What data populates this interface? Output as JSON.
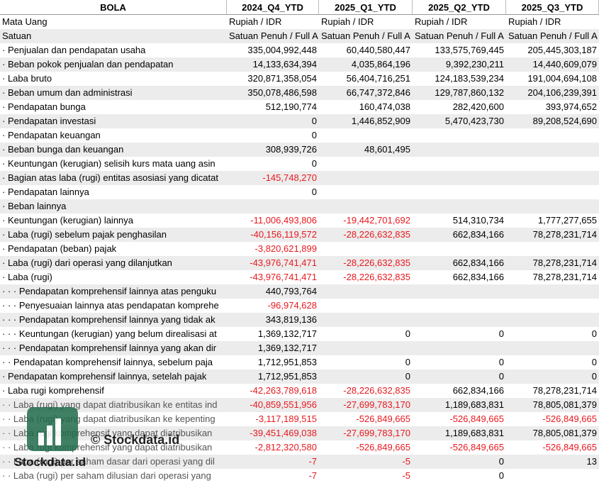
{
  "header": [
    "BOLA",
    "2024_Q4_YTD",
    "2025_Q1_YTD",
    "2025_Q2_YTD",
    "2025_Q3_YTD"
  ],
  "meta_rows": [
    {
      "label": "Mata Uang",
      "values": [
        "Rupiah / IDR",
        "Rupiah / IDR",
        "Rupiah / IDR",
        "Rupiah / IDR"
      ]
    },
    {
      "label": "Satuan",
      "values": [
        "Satuan Penuh / Full A",
        "Satuan Penuh / Full A",
        "Satuan Penuh / Full A",
        "Satuan Penuh / Full A"
      ]
    }
  ],
  "rows": [
    {
      "label": "· Penjualan dan pendapatan usaha",
      "values": [
        "335,004,992,448",
        "60,440,580,447",
        "133,575,769,445",
        "205,445,303,187"
      ]
    },
    {
      "label": "· Beban pokok penjualan dan pendapatan",
      "values": [
        "14,133,634,394",
        "4,035,864,196",
        "9,392,230,211",
        "14,440,609,079"
      ]
    },
    {
      "label": "· Laba bruto",
      "values": [
        "320,871,358,054",
        "56,404,716,251",
        "124,183,539,234",
        "191,004,694,108"
      ]
    },
    {
      "label": "· Beban umum dan administrasi",
      "values": [
        "350,078,486,598",
        "66,747,372,846",
        "129,787,860,132",
        "204,106,239,391"
      ]
    },
    {
      "label": "· Pendapatan bunga",
      "values": [
        "512,190,774",
        "160,474,038",
        "282,420,600",
        "393,974,652"
      ]
    },
    {
      "label": "· Pendapatan investasi",
      "values": [
        "0",
        "1,446,852,909",
        "5,470,423,730",
        "89,208,524,690"
      ]
    },
    {
      "label": "· Pendapatan keuangan",
      "values": [
        "0",
        null,
        null,
        null
      ]
    },
    {
      "label": "· Beban bunga dan keuangan",
      "values": [
        "308,939,726",
        "48,601,495",
        null,
        null
      ]
    },
    {
      "label": "· Keuntungan (kerugian) selisih kurs mata uang asin",
      "values": [
        "0",
        null,
        null,
        null
      ]
    },
    {
      "label": "· Bagian atas laba (rugi) entitas asosiasi yang dicatat",
      "values": [
        "-145,748,270",
        null,
        null,
        null
      ]
    },
    {
      "label": "· Pendapatan lainnya",
      "values": [
        "0",
        null,
        null,
        null
      ]
    },
    {
      "label": "· Beban lainnya",
      "values": [
        null,
        null,
        null,
        null
      ]
    },
    {
      "label": "· Keuntungan (kerugian) lainnya",
      "values": [
        "-11,006,493,806",
        "-19,442,701,692",
        "514,310,734",
        "1,777,277,655"
      ]
    },
    {
      "label": "· Laba (rugi) sebelum pajak penghasilan",
      "values": [
        "-40,156,119,572",
        "-28,226,632,835",
        "662,834,166",
        "78,278,231,714"
      ]
    },
    {
      "label": "· Pendapatan (beban) pajak",
      "values": [
        "-3,820,621,899",
        null,
        null,
        null
      ]
    },
    {
      "label": "· Laba (rugi) dari operasi yang dilanjutkan",
      "values": [
        "-43,976,741,471",
        "-28,226,632,835",
        "662,834,166",
        "78,278,231,714"
      ]
    },
    {
      "label": "· Laba (rugi)",
      "values": [
        "-43,976,741,471",
        "-28,226,632,835",
        "662,834,166",
        "78,278,231,714"
      ]
    },
    {
      "label": "· · · Pendapatan komprehensif lainnya atas penguku",
      "values": [
        "440,793,764",
        null,
        null,
        null
      ]
    },
    {
      "label": "· · · Penyesuaian lainnya atas pendapatan komprehe",
      "values": [
        "-96,974,628",
        null,
        null,
        null
      ]
    },
    {
      "label": "· · · Pendapatan komprehensif lainnya yang tidak ak",
      "values": [
        "343,819,136",
        null,
        null,
        null
      ]
    },
    {
      "label": "· · · Keuntungan (kerugian) yang belum direalisasi at",
      "values": [
        "1,369,132,717",
        "0",
        "0",
        "0"
      ]
    },
    {
      "label": "· · · Pendapatan komprehensif lainnya yang akan dir",
      "values": [
        "1,369,132,717",
        null,
        null,
        null
      ]
    },
    {
      "label": "· · Pendapatan komprehensif lainnya, sebelum paja",
      "values": [
        "1,712,951,853",
        "0",
        "0",
        "0"
      ]
    },
    {
      "label": "· Pendapatan komprehensif lainnya, setelah pajak",
      "values": [
        "1,712,951,853",
        "0",
        "0",
        "0"
      ]
    },
    {
      "label": "· Laba rugi komprehensif",
      "values": [
        "-42,263,789,618",
        "-28,226,632,835",
        "662,834,166",
        "78,278,231,714"
      ]
    },
    {
      "label": "· · Laba (rugi) yang dapat diatribusikan ke entitas ind",
      "values": [
        "-40,859,551,956",
        "-27,699,783,170",
        "1,189,683,831",
        "78,805,081,379"
      ]
    },
    {
      "label": "· · Laba (rugi) yang dapat diatribusikan ke kepenting",
      "values": [
        "-3,117,189,515",
        "-526,849,665",
        "-526,849,665",
        "-526,849,665"
      ]
    },
    {
      "label": "· · Laba rugi komprehensif yang dapat diatribusikan",
      "values": [
        "-39,451,469,038",
        "-27,699,783,170",
        "1,189,683,831",
        "78,805,081,379"
      ]
    },
    {
      "label": "· · Laba rugi komprehensif yang dapat diatribusikan",
      "values": [
        "-2,812,320,580",
        "-526,849,665",
        "-526,849,665",
        "-526,849,665"
      ]
    },
    {
      "label": "· · Laba (rugi) per saham dasar dari operasi yang dil",
      "values": [
        "-7",
        "-5",
        "0",
        "13"
      ]
    },
    {
      "label": "· · Laba (rugi) per saham dilusian dari operasi yang",
      "values": [
        "-7",
        "-5",
        "0",
        null
      ]
    }
  ],
  "watermark": {
    "center": "© Stockdata.id",
    "logo": "Stockdata.id"
  }
}
